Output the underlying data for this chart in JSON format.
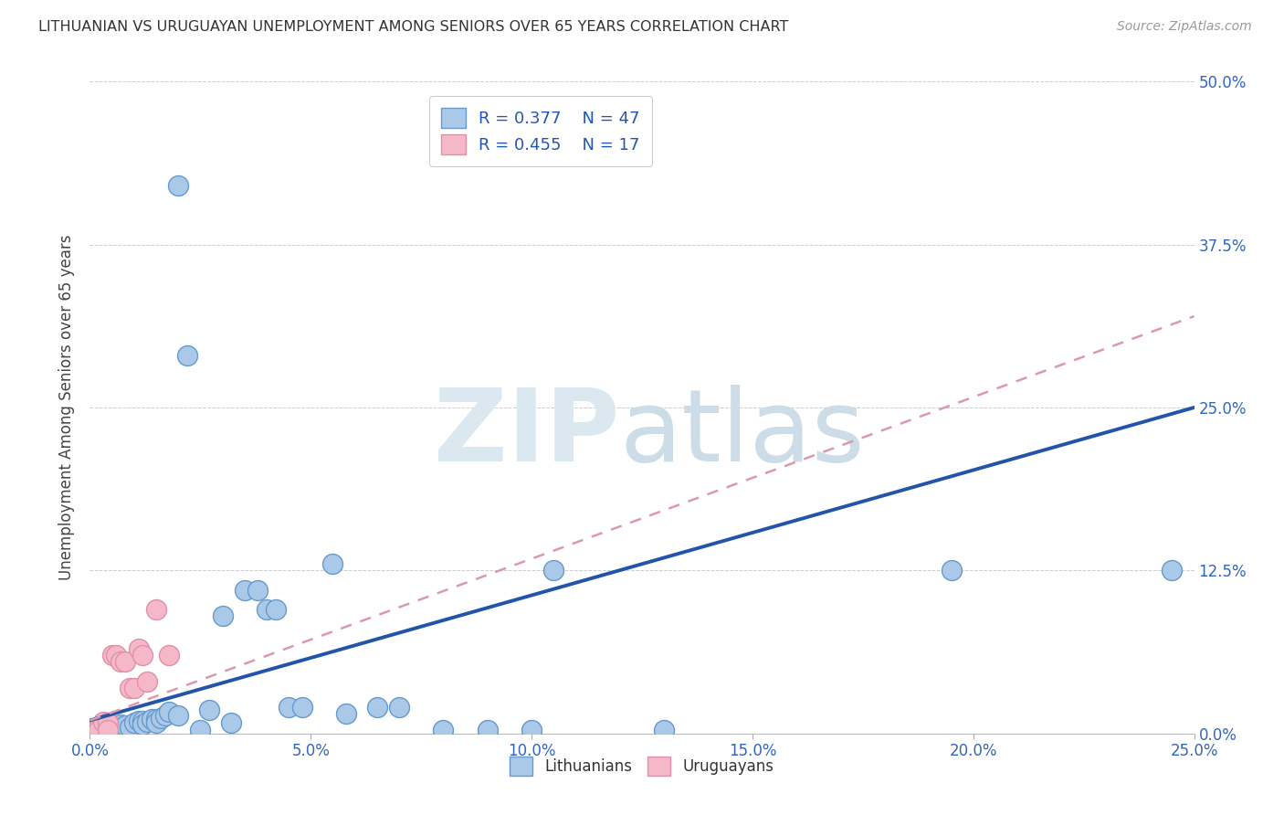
{
  "title": "LITHUANIAN VS URUGUAYAN UNEMPLOYMENT AMONG SENIORS OVER 65 YEARS CORRELATION CHART",
  "source": "Source: ZipAtlas.com",
  "xlabel_ticks": [
    "0.0%",
    "5.0%",
    "10.0%",
    "15.0%",
    "20.0%",
    "25.0%"
  ],
  "ylabel_ticks": [
    "0.0%",
    "12.5%",
    "25.0%",
    "37.5%",
    "50.0%"
  ],
  "ylabel": "Unemployment Among Seniors over 65 years",
  "xlim": [
    0.0,
    0.25
  ],
  "ylim": [
    0.0,
    0.5
  ],
  "legend_r1": "R = 0.377",
  "legend_n1": "N = 47",
  "legend_r2": "R = 0.455",
  "legend_n2": "N = 17",
  "lit_color": "#aac9e8",
  "uru_color": "#f5b8c8",
  "lit_edge_color": "#6699cc",
  "uru_edge_color": "#e090a8",
  "lit_line_color": "#2255aa",
  "uru_line_color": "#dd99aa",
  "lit_scatter": [
    [
      0.001,
      0.003
    ],
    [
      0.002,
      0.005
    ],
    [
      0.003,
      0.003
    ],
    [
      0.003,
      0.006
    ],
    [
      0.004,
      0.004
    ],
    [
      0.005,
      0.006
    ],
    [
      0.005,
      0.003
    ],
    [
      0.006,
      0.005
    ],
    [
      0.007,
      0.007
    ],
    [
      0.007,
      0.004
    ],
    [
      0.008,
      0.006
    ],
    [
      0.009,
      0.005
    ],
    [
      0.01,
      0.008
    ],
    [
      0.011,
      0.01
    ],
    [
      0.012,
      0.01
    ],
    [
      0.012,
      0.007
    ],
    [
      0.013,
      0.009
    ],
    [
      0.014,
      0.011
    ],
    [
      0.015,
      0.011
    ],
    [
      0.015,
      0.008
    ],
    [
      0.016,
      0.012
    ],
    [
      0.017,
      0.014
    ],
    [
      0.018,
      0.017
    ],
    [
      0.02,
      0.42
    ],
    [
      0.02,
      0.014
    ],
    [
      0.022,
      0.29
    ],
    [
      0.025,
      0.003
    ],
    [
      0.027,
      0.018
    ],
    [
      0.03,
      0.09
    ],
    [
      0.032,
      0.008
    ],
    [
      0.035,
      0.11
    ],
    [
      0.038,
      0.11
    ],
    [
      0.04,
      0.095
    ],
    [
      0.042,
      0.095
    ],
    [
      0.045,
      0.02
    ],
    [
      0.048,
      0.02
    ],
    [
      0.055,
      0.13
    ],
    [
      0.058,
      0.015
    ],
    [
      0.065,
      0.02
    ],
    [
      0.07,
      0.02
    ],
    [
      0.08,
      0.003
    ],
    [
      0.09,
      0.003
    ],
    [
      0.1,
      0.003
    ],
    [
      0.105,
      0.125
    ],
    [
      0.13,
      0.003
    ],
    [
      0.195,
      0.125
    ],
    [
      0.245,
      0.125
    ]
  ],
  "uru_scatter": [
    [
      0.001,
      0.004
    ],
    [
      0.002,
      0.005
    ],
    [
      0.002,
      0.003
    ],
    [
      0.003,
      0.009
    ],
    [
      0.004,
      0.008
    ],
    [
      0.004,
      0.003
    ],
    [
      0.005,
      0.06
    ],
    [
      0.006,
      0.06
    ],
    [
      0.007,
      0.055
    ],
    [
      0.008,
      0.055
    ],
    [
      0.009,
      0.035
    ],
    [
      0.01,
      0.035
    ],
    [
      0.011,
      0.065
    ],
    [
      0.012,
      0.06
    ],
    [
      0.013,
      0.04
    ],
    [
      0.015,
      0.095
    ],
    [
      0.018,
      0.06
    ]
  ],
  "lit_trendline_x": [
    0.0,
    0.25
  ],
  "lit_trendline_y": [
    0.01,
    0.25
  ],
  "uru_trendline_x": [
    0.0,
    0.25
  ],
  "uru_trendline_y": [
    0.01,
    0.32
  ],
  "background_color": "#ffffff",
  "grid_color": "#cccccc"
}
